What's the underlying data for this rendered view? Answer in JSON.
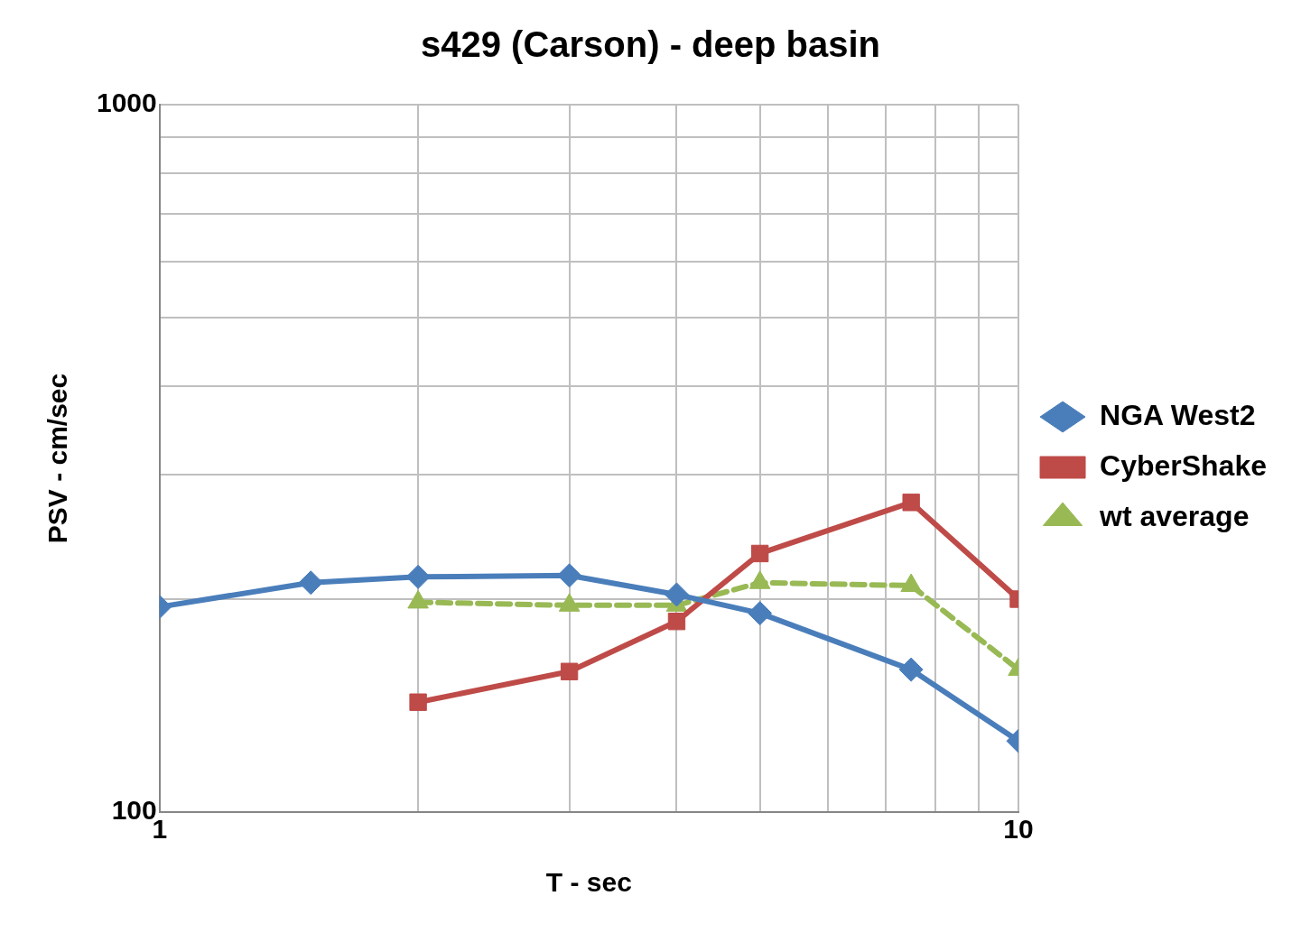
{
  "chart_data": {
    "type": "line",
    "title": "s429 (Carson) - deep basin",
    "xlabel": "T - sec",
    "ylabel": "PSV - cm/sec",
    "log": "xy",
    "grid": true,
    "legend": "right",
    "xlim": [
      1,
      10
    ],
    "xticks": [
      1,
      {
        "value": 2,
        "label": null
      },
      {
        "value": 3,
        "label": null
      },
      {
        "value": 4,
        "label": null
      },
      {
        "value": 5,
        "label": null
      },
      {
        "value": 6,
        "label": null
      },
      {
        "value": 7,
        "label": null
      },
      {
        "value": 8,
        "label": null
      },
      {
        "value": 9,
        "label": null
      },
      10
    ],
    "ylim": [
      100,
      1000
    ],
    "yticks": [
      100,
      {
        "value": 200,
        "label": null
      },
      {
        "value": 300,
        "label": null
      },
      {
        "value": 400,
        "label": null
      },
      {
        "value": 500,
        "label": null
      },
      {
        "value": 600,
        "label": null
      },
      {
        "value": 700,
        "label": null
      },
      {
        "value": 800,
        "label": null
      },
      {
        "value": 900,
        "label": null
      },
      1000
    ],
    "series": [
      {
        "name": "NGA West2",
        "color": "#4a7ebb",
        "marker": "diamond",
        "line_style": "solid",
        "x": [
          1,
          1.5,
          2,
          3,
          4,
          5,
          7.5,
          10
        ],
        "values": [
          195,
          211,
          215,
          216,
          203,
          191,
          159,
          126
        ]
      },
      {
        "name": "CyberShake",
        "color": "#be4b48",
        "marker": "square",
        "line_style": "solid",
        "x": [
          2,
          3,
          4,
          5,
          7.5,
          10
        ],
        "values": [
          143,
          158,
          186,
          232,
          274,
          200
        ]
      },
      {
        "name": "wt average",
        "color": "#98b954",
        "marker": "triangle",
        "line_style": "dashed",
        "x": [
          2,
          3,
          4,
          5,
          7.5,
          10
        ],
        "values": [
          198,
          196,
          196,
          211,
          209,
          159
        ]
      }
    ]
  }
}
